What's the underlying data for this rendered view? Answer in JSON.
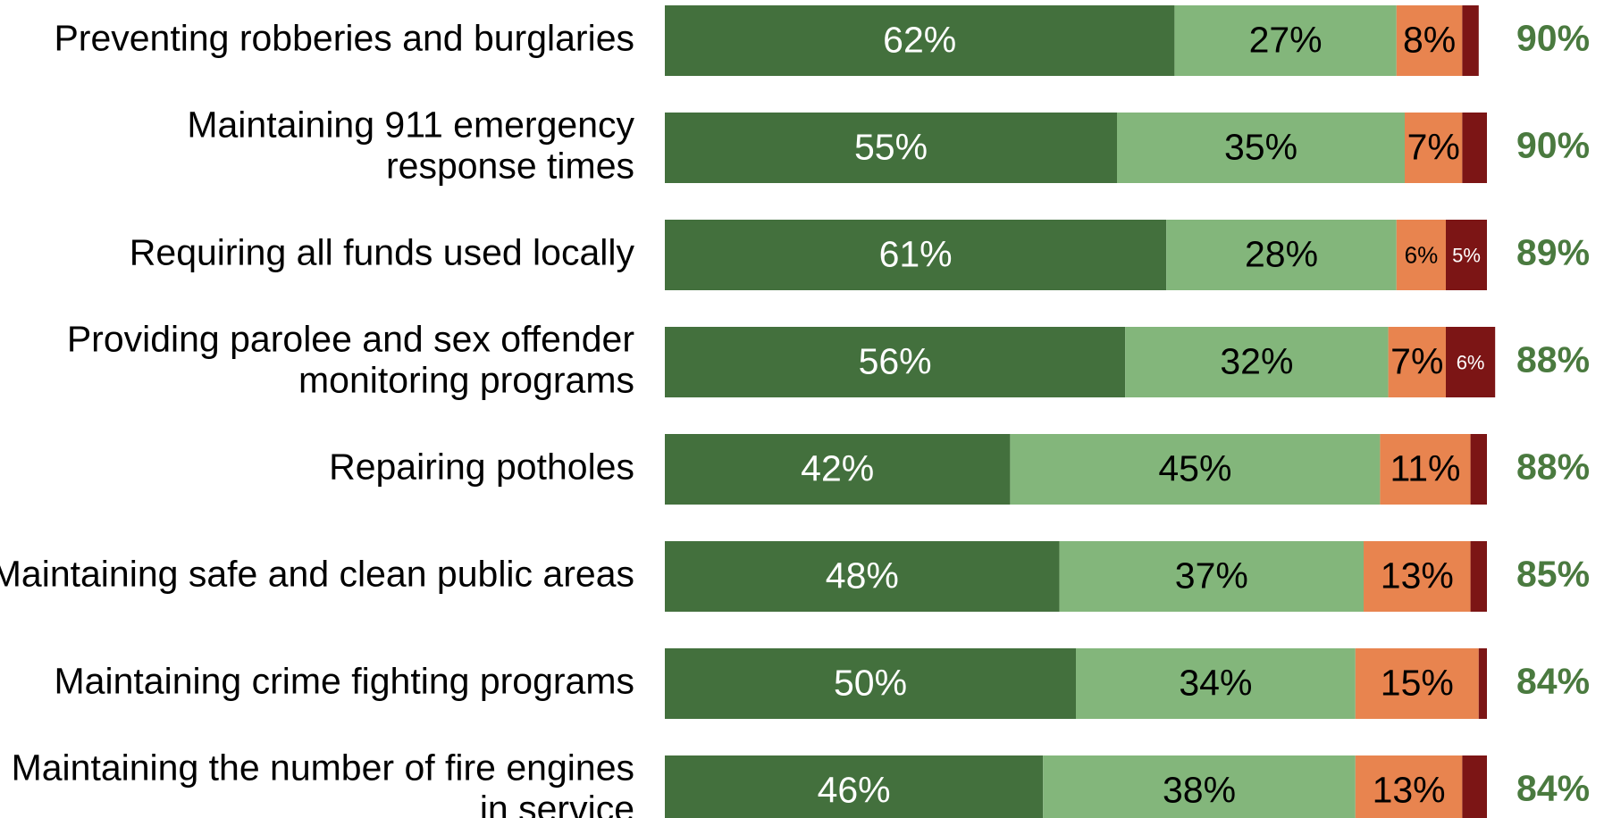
{
  "chart_data": {
    "type": "stacked-bar-horizontal",
    "categories": [
      "Preventing robberies and burglaries",
      "Maintaining 911 emergency\nresponse times",
      "Requiring all funds used locally",
      "Providing parolee and sex offender\nmonitoring programs",
      "Repairing potholes",
      "Maintaining safe and clean public areas",
      "Maintaining crime fighting programs",
      "Maintaining the number of fire engines\nin service"
    ],
    "xlim": [
      0,
      100
    ],
    "series": [
      {
        "color": "#43703d",
        "values": [
          62,
          55,
          61,
          56,
          42,
          48,
          50,
          46
        ],
        "value_labels": [
          "62%",
          "55%",
          "61%",
          "56%",
          "42%",
          "48%",
          "50%",
          "46%"
        ]
      },
      {
        "color": "#83b67b",
        "values": [
          27,
          35,
          28,
          32,
          45,
          37,
          34,
          38
        ],
        "value_labels": [
          "27%",
          "35%",
          "28%",
          "32%",
          "45%",
          "37%",
          "34%",
          "38%"
        ]
      },
      {
        "color": "#e8844f",
        "values": [
          8,
          7,
          6,
          7,
          11,
          13,
          15,
          13
        ],
        "value_labels": [
          "8%",
          "7%",
          "6%",
          "7%",
          "11%",
          "13%",
          "15%",
          "13%"
        ]
      },
      {
        "color": "#7c1515",
        "values": [
          2,
          3,
          5,
          6,
          2,
          2,
          1,
          3
        ],
        "value_labels": [
          null,
          null,
          "5%",
          "6%",
          null,
          null,
          null,
          null
        ]
      }
    ],
    "totals": {
      "color": "#4a7a3f",
      "values": [
        90,
        90,
        89,
        88,
        88,
        85,
        84,
        84
      ],
      "value_labels": [
        "90%",
        "90%",
        "89%",
        "88%",
        "88%",
        "85%",
        "84%",
        "84%"
      ]
    }
  }
}
